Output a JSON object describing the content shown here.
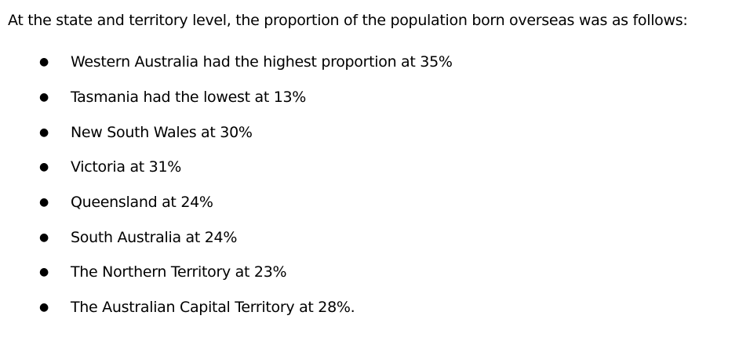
{
  "intro": "At the state and territory level, the proportion of the population born overseas was as follows:",
  "items": [
    "Western Australia had the highest proportion at 35%",
    "Tasmania had the lowest at 13%",
    "New South Wales at 30%",
    "Victoria at 31%",
    "Queensland at 24%",
    "South Australia at 24%",
    "The Northern Territory at 23%",
    "The Australian Capital Territory at 28%."
  ]
}
